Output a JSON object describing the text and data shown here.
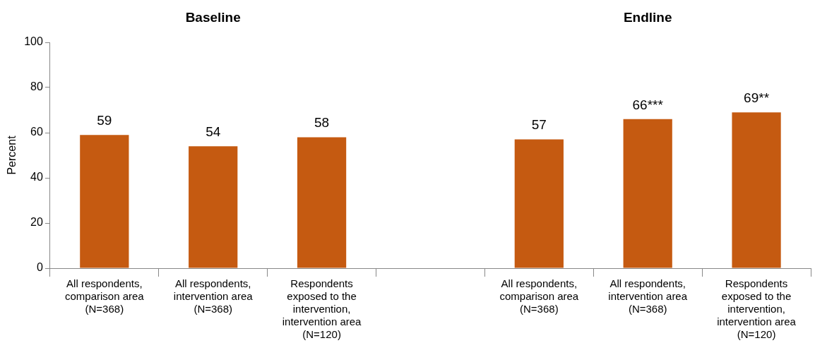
{
  "chart_data": {
    "type": "bar",
    "annotations": [
      "Baseline",
      "Endline"
    ],
    "ylabel": "Percent",
    "categories": [
      "All respondents, comparison area (N=368)",
      "All respondents, intervention area (N=368)",
      "Respondents exposed to the intervention, intervention area (N=120)",
      null,
      "All respondents, comparison area (N=368)",
      "All respondents, intervention area (N=368)",
      "Respondents exposed to the intervention, intervention area (N=120)"
    ],
    "values": [
      59,
      54,
      58,
      null,
      57,
      66,
      69
    ],
    "value_labels": [
      "59",
      "54",
      "58",
      null,
      "57",
      "66***",
      "69**"
    ],
    "color": "#c55a11",
    "ylim": [
      0,
      100
    ],
    "yticks": [
      0,
      20,
      40,
      60,
      80,
      100
    ],
    "grid": false,
    "legend": false
  }
}
